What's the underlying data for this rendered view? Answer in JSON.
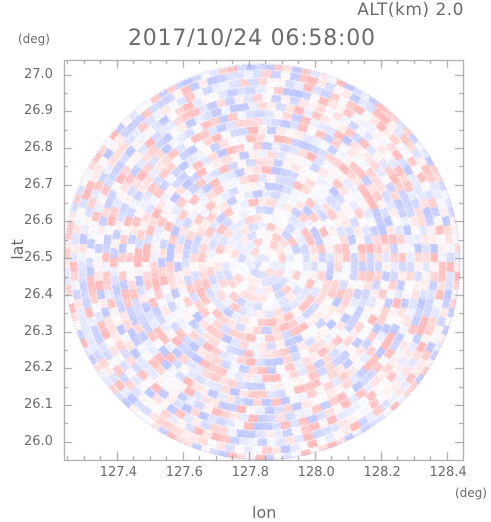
{
  "header": {
    "altitude_label": "ALT(km) 2.0",
    "datetime": "2017/10/24 06:58:00"
  },
  "axes": {
    "x_unit": "(deg)",
    "y_unit": "(deg)",
    "x_label": "lon",
    "y_label": "lat",
    "x_ticks": [
      "127.4",
      "127.6",
      "127.8",
      "128.0",
      "128.2",
      "128.4"
    ],
    "y_ticks": [
      "27.0",
      "26.9",
      "26.8",
      "26.7",
      "26.6",
      "26.5",
      "26.4",
      "26.3",
      "26.2",
      "26.1",
      "26.0"
    ],
    "x_range": [
      127.24,
      128.45
    ],
    "y_range": [
      25.95,
      27.04
    ]
  },
  "map": {
    "center_lon": 127.84,
    "center_lat": 26.49,
    "radius_deg_lon": 0.6
  },
  "colors": {
    "positive": "#f2a8a8",
    "negative": "#aab3ee",
    "neutral": "#ffffff",
    "axis": "#999999",
    "text": "#6b6b6b"
  }
}
